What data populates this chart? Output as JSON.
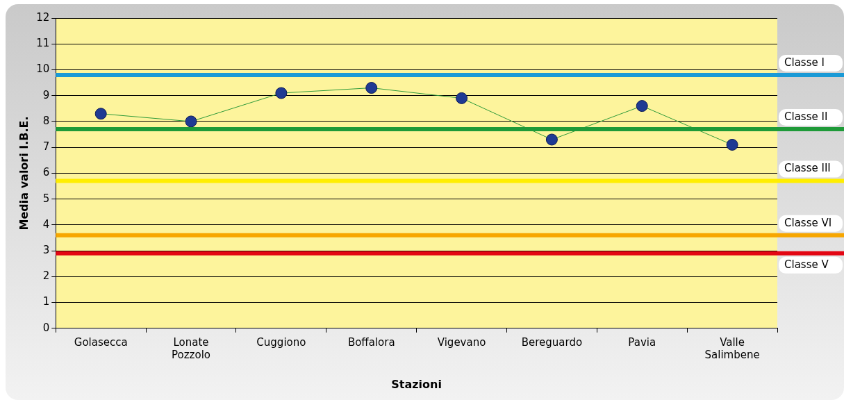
{
  "chart_data": {
    "type": "line",
    "xlabel": "Stazioni",
    "ylabel": "Media valori I.B.E.",
    "categories": [
      "Golasecca",
      "Lonate Pozzolo",
      "Cuggiono",
      "Boffalora",
      "Vigevano",
      "Bereguardo",
      "Pavia",
      "Valle Salimbene"
    ],
    "series": [
      {
        "color": "#1f3a93",
        "values": [
          8.3,
          8.0,
          9.1,
          9.3,
          8.9,
          7.3,
          8.6,
          7.1
        ]
      }
    ],
    "ylim": [
      0,
      12
    ],
    "yticks": [
      0,
      1,
      2,
      3,
      4,
      5,
      6,
      7,
      8,
      9,
      10,
      11,
      12
    ],
    "grid": "y",
    "marker": "circle",
    "ref_lines": [
      {
        "axis": "y",
        "value": 9.8,
        "label": "Classe I",
        "color": "#1a9ad6"
      },
      {
        "axis": "y",
        "value": 7.7,
        "label": "Classe II",
        "color": "#1e9a38"
      },
      {
        "axis": "y",
        "value": 5.7,
        "label": "Classe III",
        "color": "#ffee00"
      },
      {
        "axis": "y",
        "value": 3.6,
        "label": "Classe VI",
        "color": "#f7a600"
      },
      {
        "axis": "y",
        "value": 2.9,
        "label": "Classe V",
        "color": "#e30613"
      }
    ]
  }
}
